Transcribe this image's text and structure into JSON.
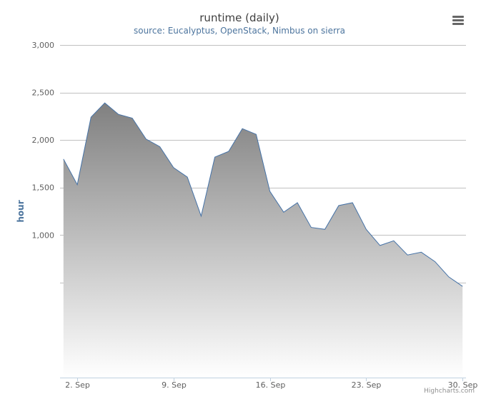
{
  "chart_data": {
    "type": "area",
    "title": "runtime (daily)",
    "subtitle": "source: Eucalyptus, OpenStack, Nimbus on sierra",
    "ylabel": "hour",
    "xlabel": "",
    "ylim": [
      -500,
      3000
    ],
    "y_ticks": [
      3000,
      2500,
      2000,
      1500,
      1000
    ],
    "y_tick_labels": [
      "3,000",
      "2,500",
      "2,000",
      "1,500",
      "1,000"
    ],
    "x_ticks": [
      2,
      9,
      16,
      23,
      30
    ],
    "x_tick_labels": [
      "2. Sep",
      "9. Sep",
      "16. Sep",
      "23. Sep",
      "30. Sep"
    ],
    "x": [
      1,
      2,
      3,
      4,
      5,
      6,
      7,
      8,
      9,
      10,
      11,
      12,
      13,
      14,
      15,
      16,
      17,
      18,
      19,
      20,
      21,
      22,
      23,
      24,
      25,
      26,
      27,
      28,
      29,
      30
    ],
    "series": [
      {
        "values": [
          1800,
          1530,
          2240,
          2390,
          2270,
          2230,
          2010,
          1930,
          1710,
          1610,
          1200,
          1820,
          1880,
          2120,
          2060,
          1460,
          1240,
          1340,
          1080,
          1060,
          1310,
          1340,
          1060,
          890,
          940,
          790,
          820,
          720,
          560,
          460
        ]
      }
    ],
    "grid": true,
    "legend": "none",
    "colors": {
      "line": "#4572a7",
      "fill_top": "#808080",
      "fill_bottom": "#ffffff",
      "grid": "#c0c0c0",
      "axis_label": "#4d759e"
    }
  },
  "credits": "Highcharts.com"
}
